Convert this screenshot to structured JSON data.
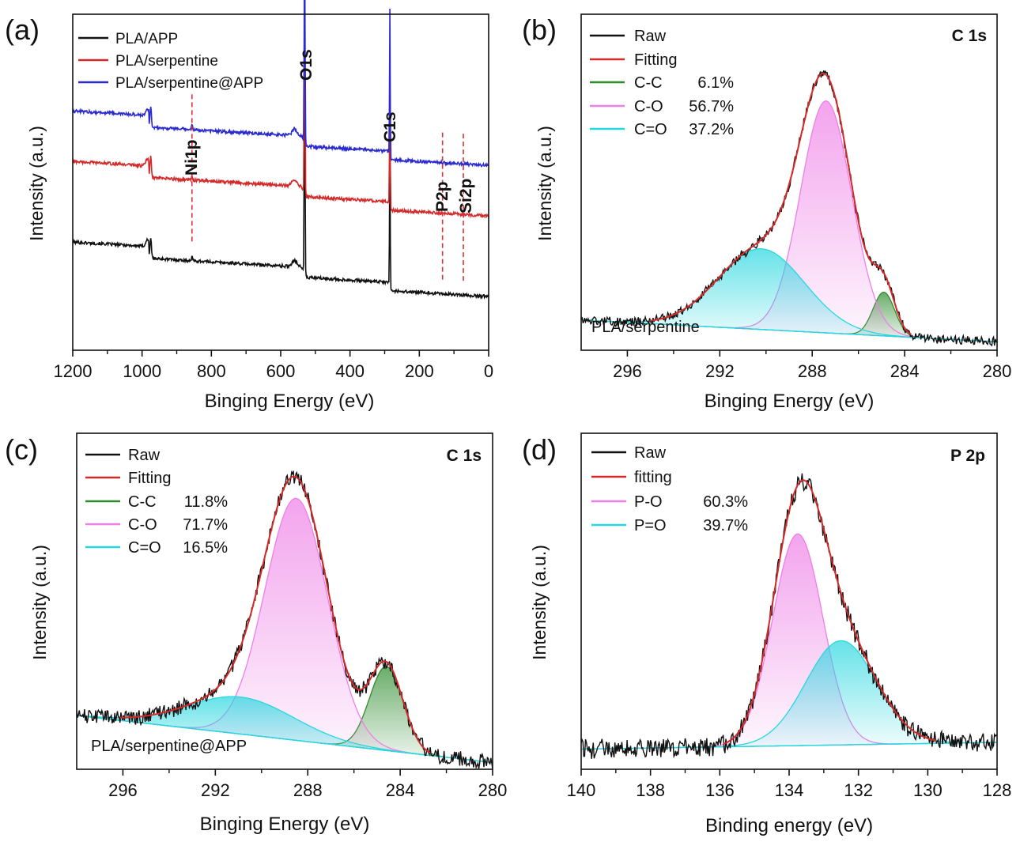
{
  "figure": {
    "colors": {
      "raw": "#111111",
      "fitting": "#d42a2a",
      "cc": "#2e8b2e",
      "co": "#ee7fe6",
      "ceqo": "#27d7df",
      "blue": "#2a2ad0",
      "red": "#d42a2a",
      "black": "#111111",
      "marker": "#e0303a"
    }
  },
  "chart_data": [
    {
      "id": "a",
      "type": "line",
      "panel_label": "(a)",
      "xlabel": "Binging Energy (eV)",
      "ylabel": "Intensity (a.u.)",
      "xlim": [
        1200,
        0
      ],
      "ylim": [
        0,
        100
      ],
      "x_reversed": true,
      "xticks": [
        1200,
        1000,
        800,
        600,
        400,
        200,
        0
      ],
      "legend_position": "top-left",
      "series": [
        {
          "name": "PLA/APP",
          "color": "#111111",
          "baseline": 16,
          "slope": 0.006
        },
        {
          "name": "PLA/serpentine",
          "color": "#d42a2a",
          "baseline": 40,
          "slope": 0.006
        },
        {
          "name": "PLA/serpentine@APP",
          "color": "#2a2ad0",
          "baseline": 55,
          "slope": 0.006
        }
      ],
      "peak_labels": [
        {
          "text": "O1s",
          "x": 531
        },
        {
          "text": "C1s",
          "x": 285
        },
        {
          "text": "Ni1p",
          "x": 856
        },
        {
          "text": "P2p",
          "x": 133
        },
        {
          "text": "Si2p",
          "x": 73
        }
      ],
      "markers": [
        856,
        133,
        73
      ]
    },
    {
      "id": "b",
      "type": "area",
      "panel_label": "(b)",
      "title": "C 1s",
      "sample": "PLA/serpentine",
      "xlabel": "Binging Energy (eV)",
      "ylabel": "Intensity (a.u.)",
      "xlim": [
        298,
        280
      ],
      "ylim": [
        0,
        100
      ],
      "x_reversed": true,
      "xticks": [
        296,
        292,
        288,
        284,
        280
      ],
      "legend_position": "top-left",
      "legend": [
        {
          "label": "Raw",
          "value": ""
        },
        {
          "label": "Fitting",
          "value": ""
        },
        {
          "label": "C-C",
          "value": "6.1%"
        },
        {
          "label": "C-O",
          "value": "56.7%"
        },
        {
          "label": "C=O",
          "value": "37.2%"
        }
      ],
      "baseline": [
        [
          298,
          9
        ],
        [
          280,
          2.5
        ]
      ],
      "peaks": [
        {
          "name": "C-C",
          "center": 284.9,
          "fwhm": 1.1,
          "height": 13
        },
        {
          "name": "C-O",
          "center": 287.4,
          "fwhm": 2.6,
          "height": 69
        },
        {
          "name": "C=O",
          "center": 290.2,
          "fwhm": 4.4,
          "height": 24
        }
      ],
      "noise": 1.1
    },
    {
      "id": "c",
      "type": "area",
      "panel_label": "(c)",
      "title": "C 1s",
      "sample": "PLA/serpentine@APP",
      "xlabel": "Binging Energy (eV)",
      "ylabel": "Intensity (a.u.)",
      "xlim": [
        298,
        280
      ],
      "ylim": [
        0,
        100
      ],
      "x_reversed": true,
      "xticks": [
        296,
        292,
        288,
        284,
        280
      ],
      "legend_position": "top-left",
      "legend": [
        {
          "label": "Raw",
          "value": ""
        },
        {
          "label": "Fitting",
          "value": ""
        },
        {
          "label": "C-C",
          "value": "11.8%"
        },
        {
          "label": "C-O",
          "value": "71.7%"
        },
        {
          "label": "C=O",
          "value": "16.5%"
        }
      ],
      "baseline": [
        [
          298,
          16
        ],
        [
          280,
          2
        ]
      ],
      "peaks": [
        {
          "name": "C-C",
          "center": 284.6,
          "fwhm": 1.7,
          "height": 25
        },
        {
          "name": "C-O",
          "center": 288.5,
          "fwhm": 3.2,
          "height": 72
        },
        {
          "name": "C=O",
          "center": 290.9,
          "fwhm": 5.4,
          "height": 11
        }
      ],
      "noise": 1.8
    },
    {
      "id": "d",
      "type": "area",
      "panel_label": "(d)",
      "title": "P 2p",
      "sample": "",
      "xlabel": "Binding energy (eV)",
      "ylabel": "Intensity (a.u.)",
      "xlim": [
        140,
        128
      ],
      "ylim": [
        0,
        100
      ],
      "x_reversed": true,
      "xticks": [
        140,
        138,
        136,
        134,
        132,
        130,
        128
      ],
      "legend_position": "top-left",
      "legend": [
        {
          "label": "Raw",
          "value": ""
        },
        {
          "label": "fitting",
          "value": ""
        },
        {
          "label": "P-O",
          "value": "60.3%"
        },
        {
          "label": "P=O",
          "value": "39.7%"
        }
      ],
      "baseline": [
        [
          140,
          6
        ],
        [
          128,
          8
        ]
      ],
      "peaks": [
        {
          "name": "P-O",
          "center": 133.75,
          "fwhm": 1.7,
          "height": 63
        },
        {
          "name": "P=O",
          "center": 132.5,
          "fwhm": 2.4,
          "height": 31
        }
      ],
      "noise": 2.2
    }
  ]
}
